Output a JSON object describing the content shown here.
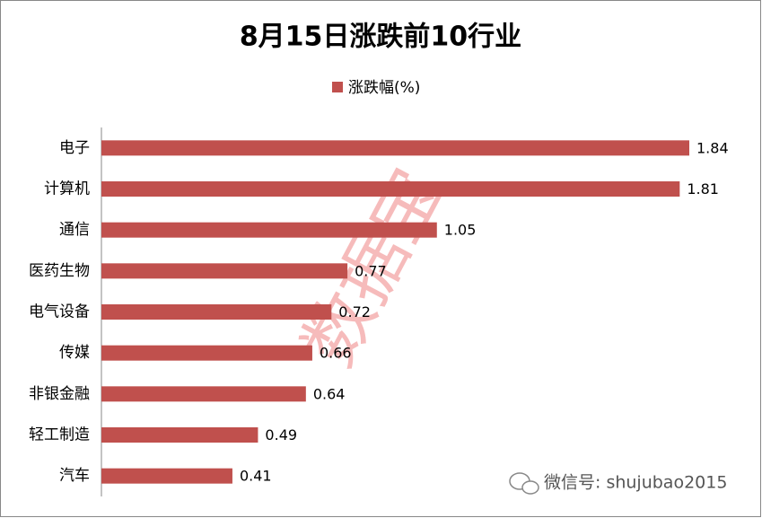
{
  "chart_data": {
    "type": "bar",
    "orientation": "horizontal",
    "title": "8月15日涨跌前10行业",
    "categories": [
      "电子",
      "计算机",
      "通信",
      "医药生物",
      "电气设备",
      "传媒",
      "非银金融",
      "轻工制造",
      "汽车"
    ],
    "series": [
      {
        "name": "涨跌幅(%)",
        "color": "#c0504d",
        "values": [
          1.84,
          1.81,
          1.05,
          0.77,
          0.72,
          0.66,
          0.64,
          0.49,
          0.41
        ]
      }
    ],
    "legend": "top",
    "watermark": "数据宝",
    "source_note": "微信号: shujubao2015"
  }
}
